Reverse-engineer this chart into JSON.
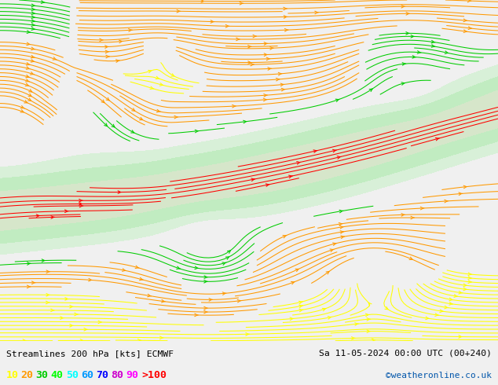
{
  "title_left": "Streamlines 200 hPa [kts] ECMWF",
  "title_right": "Sa 11-05-2024 00:00 UTC (00+240)",
  "copyright": "©weatheronline.co.uk",
  "legend_values": [
    "10",
    "20",
    "30",
    "40",
    "50",
    "60",
    "70",
    "80",
    "90",
    ">100"
  ],
  "legend_colors": [
    "#ffff00",
    "#ff9900",
    "#00cc00",
    "#00ff00",
    "#00ffff",
    "#0099ff",
    "#0000ff",
    "#cc00cc",
    "#ff00ff",
    "#ff0000"
  ],
  "speed_bands": [
    [
      0,
      10,
      "#ffff00"
    ],
    [
      10,
      20,
      "#ff9900"
    ],
    [
      20,
      30,
      "#00cc00"
    ],
    [
      30,
      40,
      "#00ff44"
    ],
    [
      40,
      50,
      "#00ffff"
    ],
    [
      50,
      60,
      "#0099ff"
    ],
    [
      60,
      70,
      "#0000ff"
    ],
    [
      70,
      80,
      "#9900cc"
    ],
    [
      80,
      90,
      "#ff00ff"
    ],
    [
      90,
      200,
      "#ff0000"
    ]
  ],
  "bg_color": "#f0f0f0",
  "map_bg": "#ffffff",
  "figsize": [
    6.34,
    4.9
  ],
  "dpi": 100
}
